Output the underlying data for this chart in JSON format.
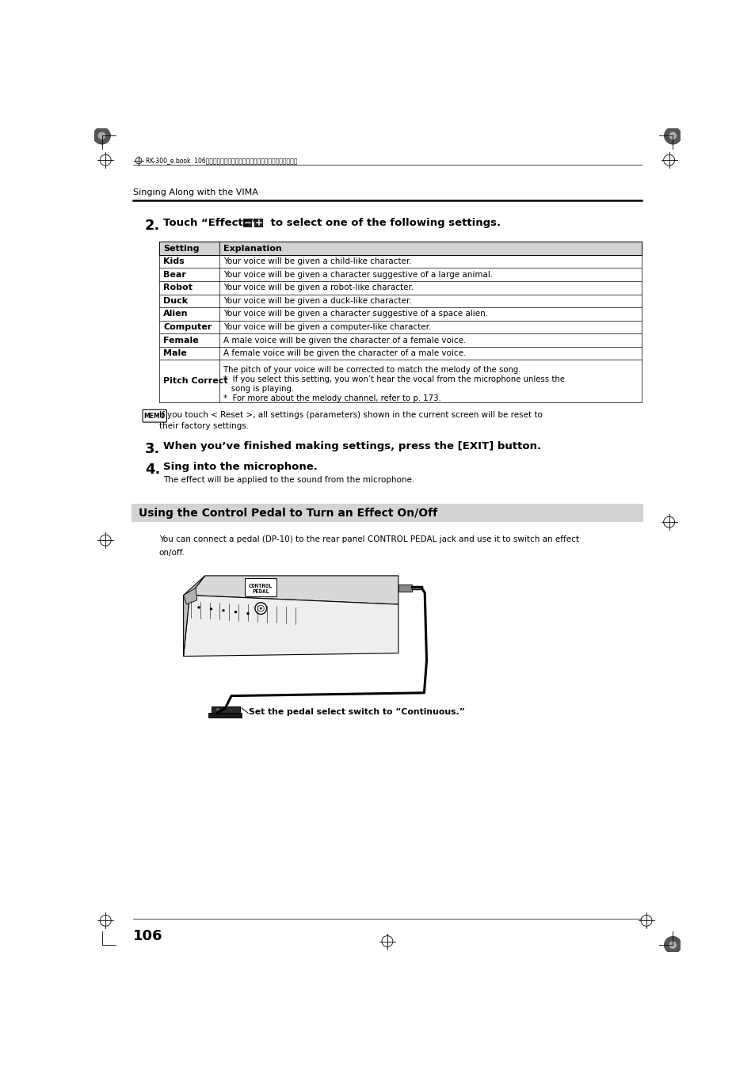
{
  "page_bg": "#ffffff",
  "page_width": 9.54,
  "page_height": 13.51,
  "header_text": "RK-300_e.book  106ページ　２００８年９月１０日　水曜日　午後４時６分",
  "section_title": "Singing Along with the VIMA",
  "table_header": [
    "Setting",
    "Explanation"
  ],
  "table_rows": [
    [
      "Kids",
      "Your voice will be given a child-like character."
    ],
    [
      "Bear",
      "Your voice will be given a character suggestive of a large animal."
    ],
    [
      "Robot",
      "Your voice will be given a robot-like character."
    ],
    [
      "Duck",
      "Your voice will be given a duck-like character."
    ],
    [
      "Alien",
      "Your voice will be given a character suggestive of a space alien."
    ],
    [
      "Computer",
      "Your voice will be given a computer-like character."
    ],
    [
      "Female",
      "A male voice will be given the character of a female voice."
    ],
    [
      "Male",
      "A female voice will be given the character of a male voice."
    ],
    [
      "Pitch Correct",
      "The pitch of your voice will be corrected to match the melody of the song.\n*  If you select this setting, you won’t hear the vocal from the microphone unless the\n   song is playing.\n*  For more about the melody channel, refer to p. 173."
    ]
  ],
  "memo_text": "If you touch < Reset >, all settings (parameters) shown in the current screen will be reset to\ntheir factory settings.",
  "step3_text": "When you’ve finished making settings, press the [EXIT] button.",
  "step4_text": "Sing into the microphone.",
  "step4_subtext": "The effect will be applied to the sound from the microphone.",
  "section2_title": "Using the Control Pedal to Turn an Effect On/Off",
  "section2_body1": "You can connect a pedal (DP-10) to the rear panel CONTROL PEDAL jack and use it to switch an effect",
  "section2_body2": "on/off.",
  "pedal_caption": "Set the pedal select switch to “Continuous.”",
  "page_number": "106",
  "table_header_bg": "#d3d3d3",
  "section2_bg": "#d3d3d3"
}
